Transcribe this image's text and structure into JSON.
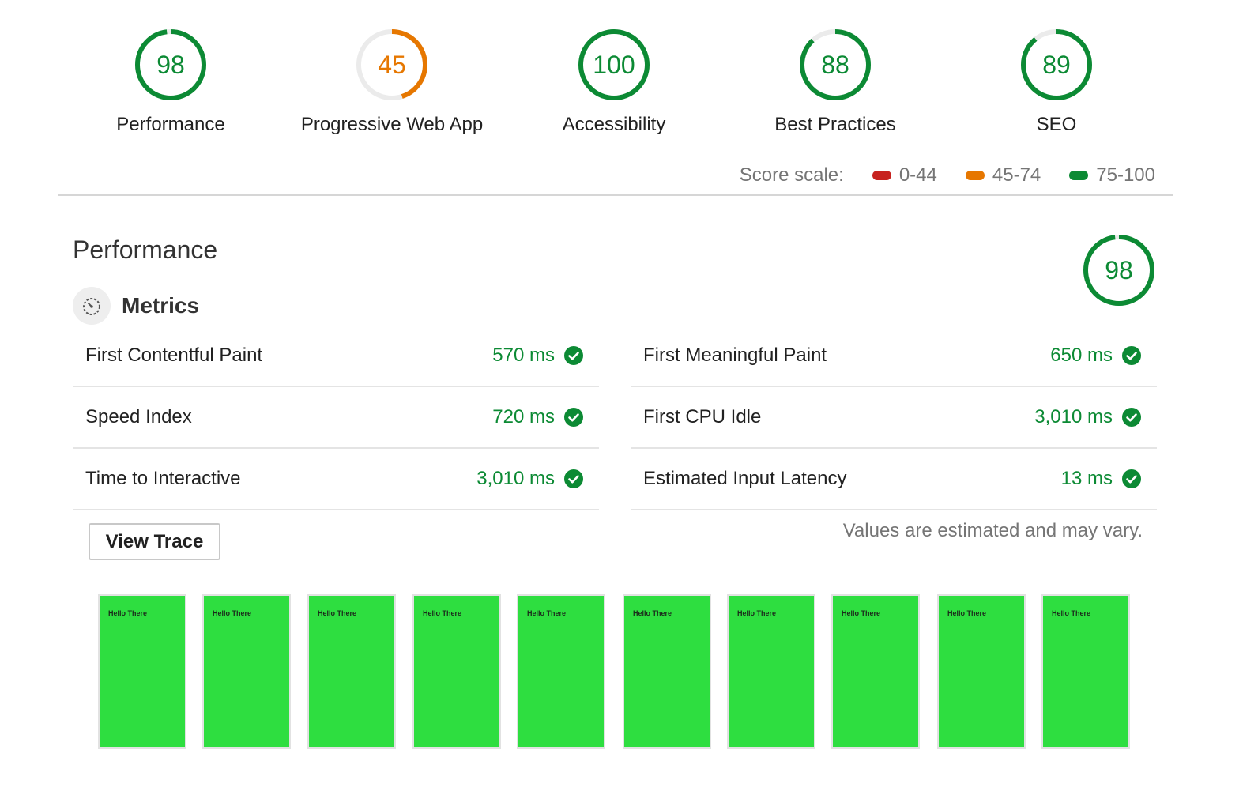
{
  "colors": {
    "pass": "#0c8a34",
    "average": "#e67700",
    "fail": "#c7221f",
    "track": "#ebebeb"
  },
  "categories": [
    {
      "score": 98,
      "label": "Performance",
      "color": "#0c8a34"
    },
    {
      "score": 45,
      "label": "Progressive Web App",
      "color": "#e67700"
    },
    {
      "score": 100,
      "label": "Accessibility",
      "color": "#0c8a34"
    },
    {
      "score": 88,
      "label": "Best Practices",
      "color": "#0c8a34"
    },
    {
      "score": 89,
      "label": "SEO",
      "color": "#0c8a34"
    }
  ],
  "scale": {
    "label": "Score scale:",
    "items": [
      {
        "range": "0-44",
        "color": "#c7221f"
      },
      {
        "range": "45-74",
        "color": "#e67700"
      },
      {
        "range": "75-100",
        "color": "#0c8a34"
      }
    ]
  },
  "performance": {
    "title": "Performance",
    "score": 98,
    "metrics_title": "Metrics",
    "metrics_left": [
      {
        "name": "First Contentful Paint",
        "value": "570 ms"
      },
      {
        "name": "Speed Index",
        "value": "720 ms"
      },
      {
        "name": "Time to Interactive",
        "value": "3,010 ms"
      }
    ],
    "metrics_right": [
      {
        "name": "First Meaningful Paint",
        "value": "650 ms"
      },
      {
        "name": "First CPU Idle",
        "value": "3,010 ms"
      },
      {
        "name": "Estimated Input Latency",
        "value": "13 ms"
      }
    ],
    "view_trace_label": "View Trace",
    "note": "Values are estimated and may vary."
  },
  "filmstrip": {
    "frame_text": [
      "Hello There",
      "Hello There",
      "Hello There",
      "Hello There",
      "Hello There",
      "Hello There",
      "Hello There",
      "Hello There",
      "Hello There",
      "Hello There"
    ]
  }
}
